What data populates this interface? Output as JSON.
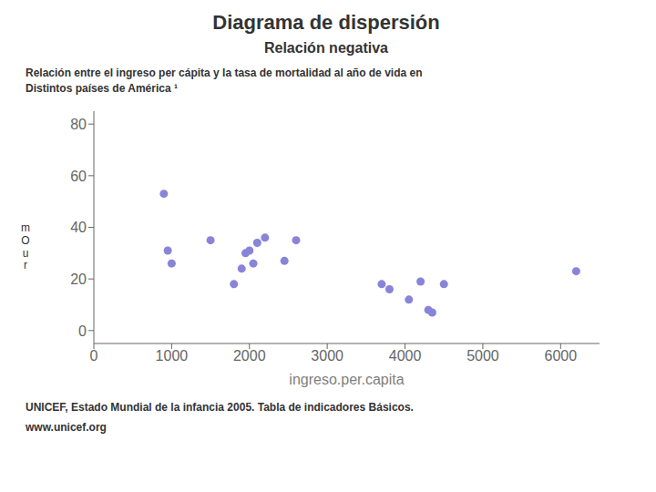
{
  "chart_data": {
    "type": "scatter",
    "title": "Diagrama de dispersión",
    "subtitle": "Relación negativa",
    "annotations": [
      "Relación entre el ingreso per cápita y la tasa de mortalidad al año de vida en\nDistintos países de América ¹",
      "UNICEF, Estado Mundial de la infancia 2005. Tabla de indicadores Básicos.",
      "www.unicef.org"
    ],
    "xlabel": "ingreso.per.capita",
    "ylabel": "m\nO\nu\nr",
    "x": [
      900,
      950,
      1000,
      1500,
      1800,
      1900,
      1950,
      2000,
      2050,
      2100,
      2200,
      2450,
      2600,
      3700,
      3800,
      4050,
      4200,
      4300,
      4350,
      4500,
      6200
    ],
    "values": [
      53,
      31,
      26,
      35,
      18,
      24,
      30,
      31,
      26,
      34,
      36,
      27,
      35,
      18,
      16,
      12,
      19,
      8,
      7,
      18,
      23
    ],
    "xlim": [
      0,
      6500
    ],
    "ylim": [
      -5,
      85
    ],
    "xticks": [
      0,
      1000,
      2000,
      3000,
      4000,
      5000,
      6000
    ],
    "yticks": [
      0,
      20,
      40,
      60,
      80
    ],
    "marker": "circle",
    "grid": false
  }
}
